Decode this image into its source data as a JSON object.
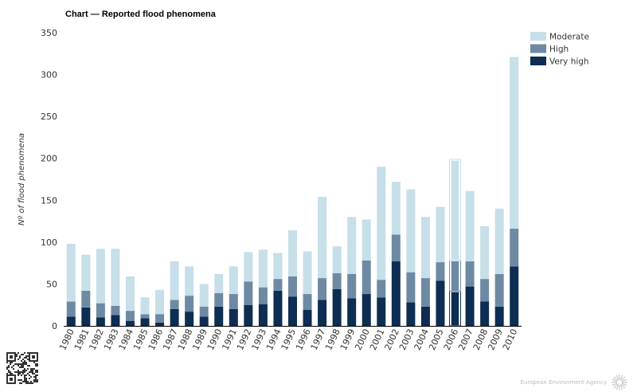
{
  "chart_data": {
    "type": "bar",
    "stacked": true,
    "title": "Chart — Reported flood phenomena",
    "ylabel": "Nº of flood phenomena",
    "xlabel": "",
    "ylim": [
      0,
      350
    ],
    "yticks": [
      0,
      50,
      100,
      150,
      200,
      250,
      300,
      350
    ],
    "grid": false,
    "legend_position": "top-right",
    "highlighted_category": "2006",
    "categories": [
      "1980",
      "1981",
      "1982",
      "1983",
      "1984",
      "1985",
      "1986",
      "1987",
      "1988",
      "1989",
      "1990",
      "1991",
      "1992",
      "1993",
      "1994",
      "1995",
      "1996",
      "1997",
      "1998",
      "1999",
      "2000",
      "2001",
      "2002",
      "2003",
      "2004",
      "2005",
      "2006",
      "2007",
      "2008",
      "2009",
      "2010"
    ],
    "series": [
      {
        "name": "Very high",
        "color": "#0d2d52",
        "values": [
          11,
          22,
          10,
          13,
          6,
          9,
          4,
          20,
          17,
          11,
          23,
          20,
          25,
          26,
          42,
          35,
          19,
          31,
          44,
          33,
          38,
          34,
          77,
          28,
          23,
          54,
          41,
          47,
          29,
          23,
          71
        ]
      },
      {
        "name": "High",
        "color": "#6e8aa3",
        "values": [
          18,
          20,
          17,
          11,
          12,
          5,
          10,
          11,
          19,
          12,
          16,
          18,
          28,
          20,
          14,
          24,
          19,
          26,
          19,
          29,
          40,
          21,
          32,
          36,
          34,
          22,
          37,
          30,
          27,
          39,
          45
        ]
      },
      {
        "name": "Moderate",
        "color": "#c6dfe9",
        "values": [
          69,
          43,
          65,
          68,
          41,
          20,
          29,
          46,
          35,
          27,
          23,
          33,
          35,
          45,
          31,
          55,
          51,
          97,
          32,
          68,
          49,
          135,
          63,
          99,
          73,
          66,
          120,
          84,
          63,
          78,
          205
        ]
      }
    ]
  },
  "footer": {
    "agency": "European Environment Agency"
  }
}
